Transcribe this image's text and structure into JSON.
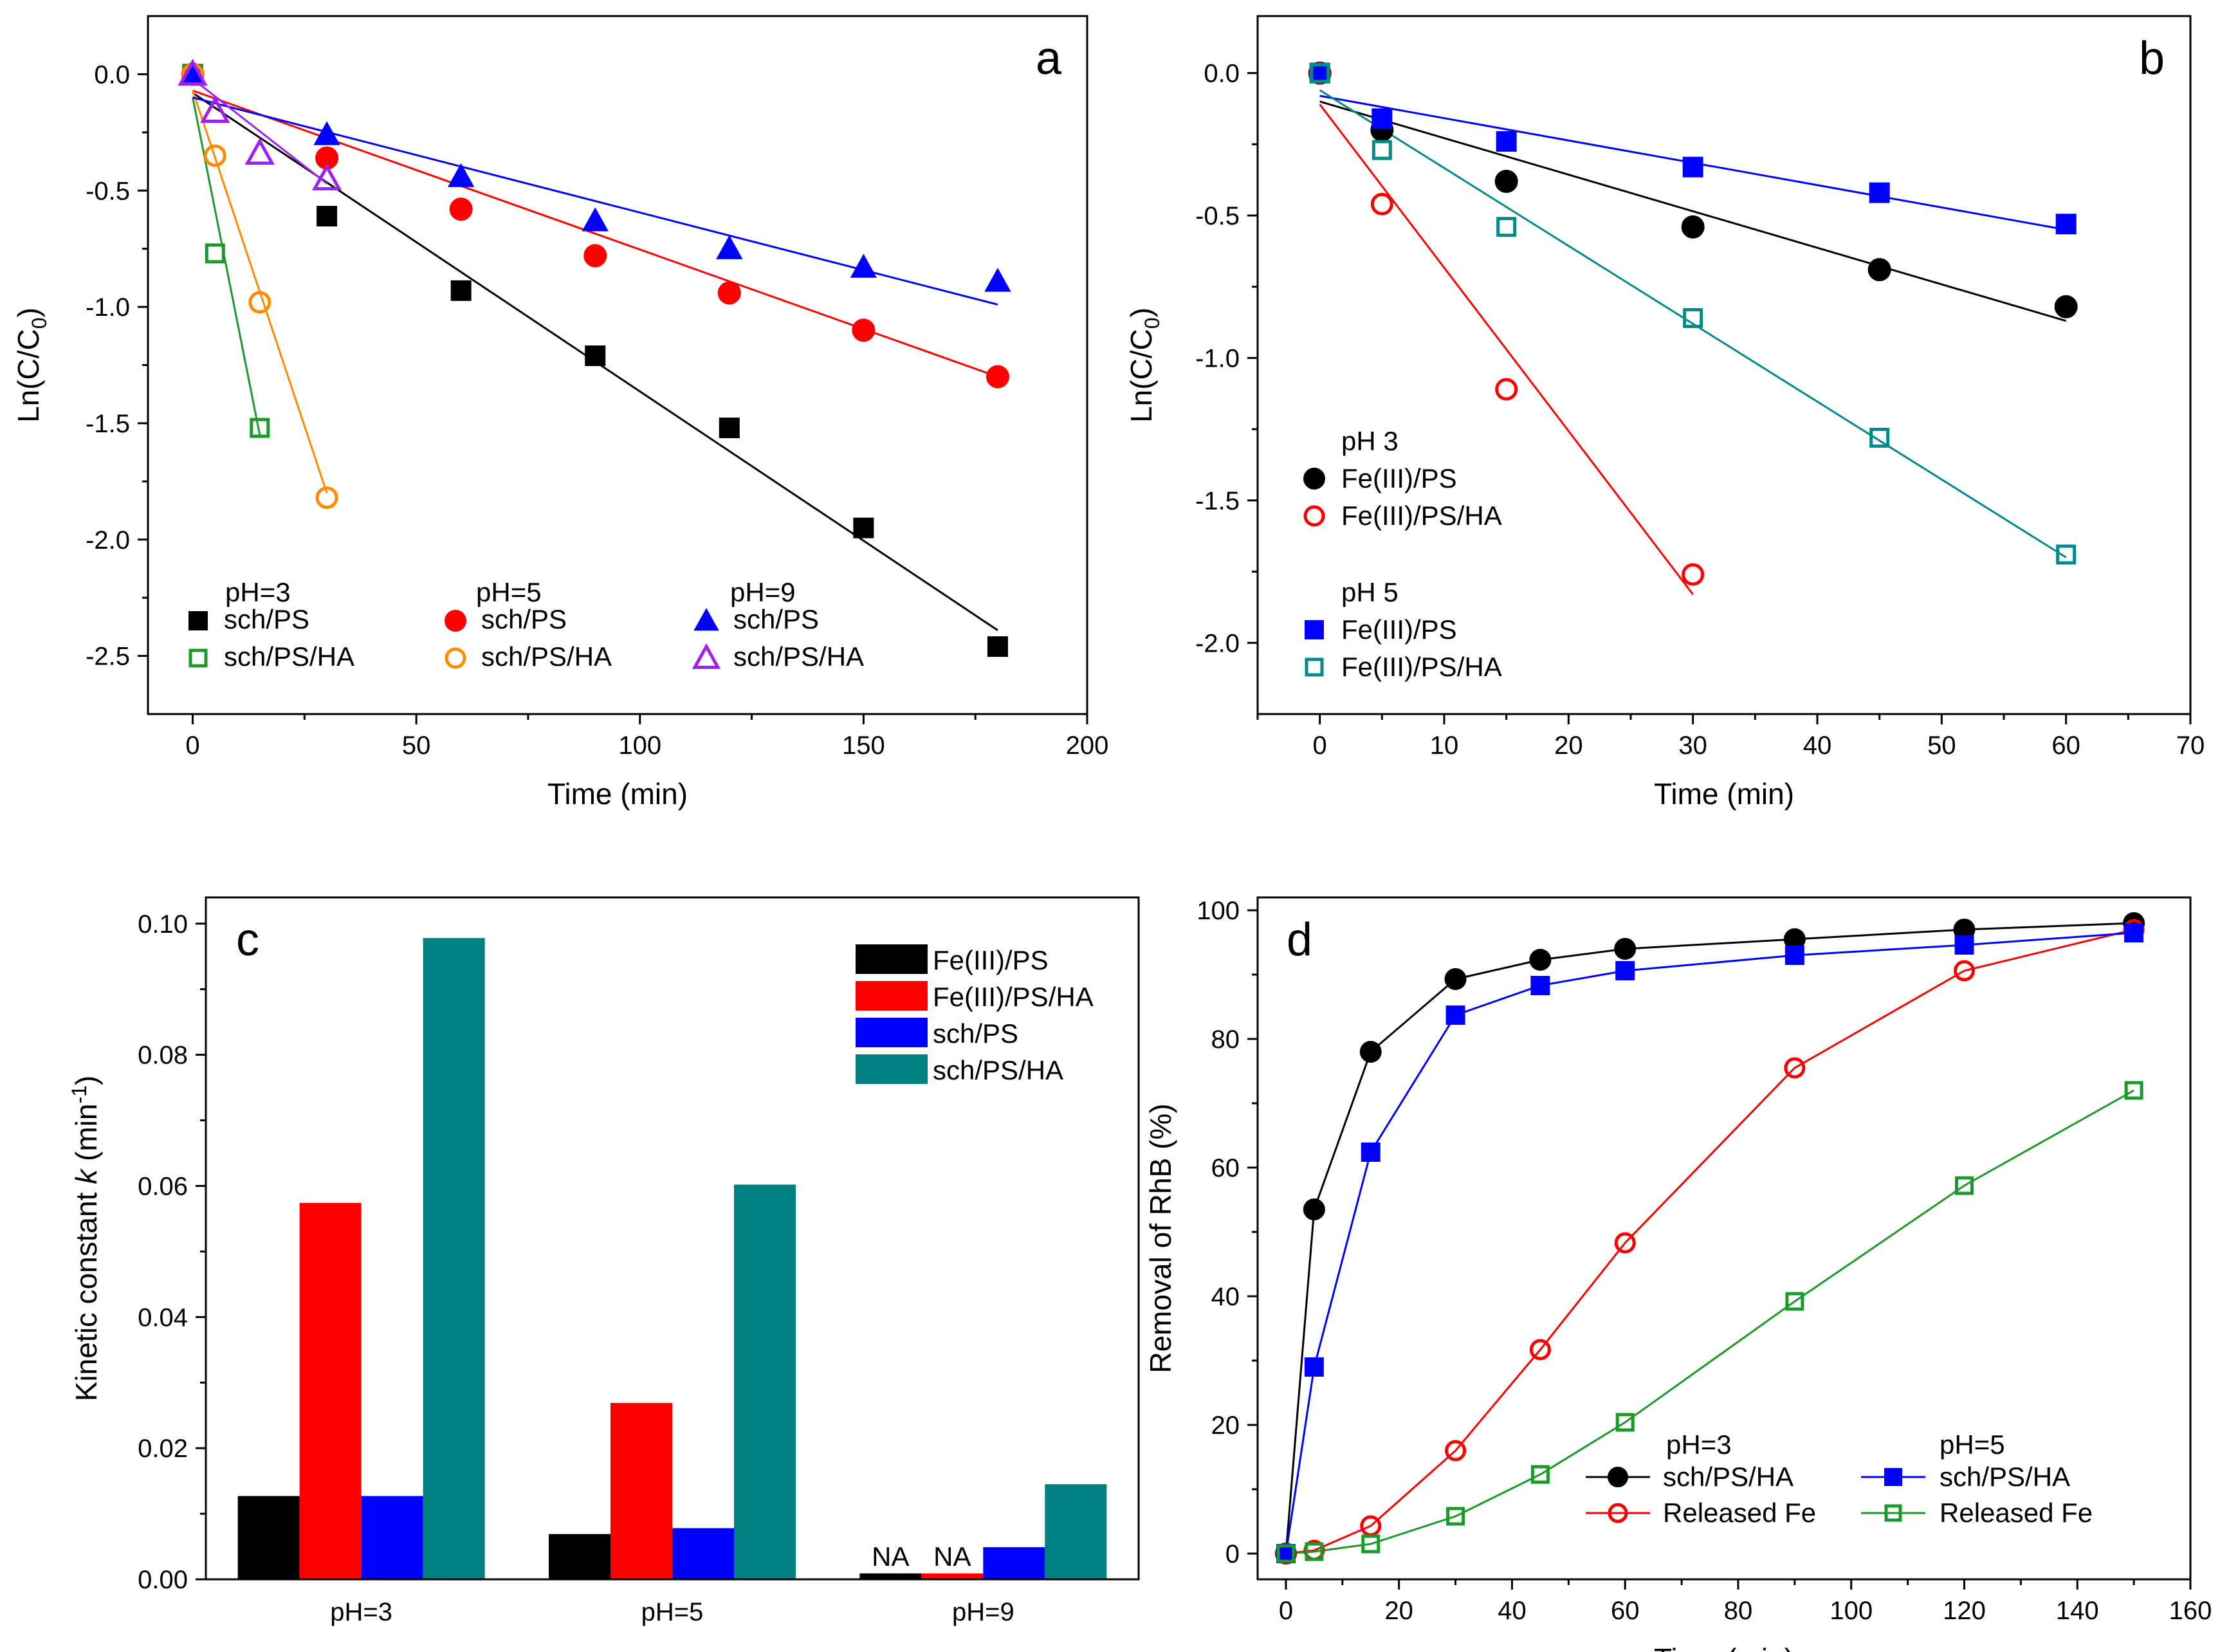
{
  "chart_data": [
    {
      "id": "a",
      "type": "scatter",
      "panel_label": "a",
      "xlabel": "Time (min)",
      "ylabel_main": "Ln(C/C",
      "ylabel_sub": "0",
      "ylabel_close": ")",
      "xlim": [
        -10,
        200
      ],
      "ylim": [
        -2.75,
        0.25
      ],
      "xticks": [
        0,
        50,
        100,
        150,
        200
      ],
      "yticks": [
        0.0,
        -0.5,
        -1.0,
        -1.5,
        -2.0,
        -2.5
      ],
      "xtick_labels": [
        "0",
        "50",
        "100",
        "150",
        "200"
      ],
      "ytick_labels": [
        "0.0",
        "-0.5",
        "-1.0",
        "-1.5",
        "-2.0",
        "-2.5"
      ],
      "legend_groups": [
        "pH=3",
        "pH=5",
        "pH=9"
      ],
      "series": [
        {
          "name": "sch/PS",
          "group": "pH=3",
          "color": "#000000",
          "marker": "square",
          "filled": true,
          "x": [
            0,
            30,
            60,
            90,
            120,
            150,
            180
          ],
          "y": [
            0.0,
            -0.61,
            -0.93,
            -1.21,
            -1.52,
            -1.95,
            -2.46
          ],
          "fit": {
            "x": [
              0,
              180
            ],
            "y": [
              -0.08,
              -2.39
            ]
          }
        },
        {
          "name": "sch/PS/HA",
          "group": "pH=3",
          "color": "#1a9a2a",
          "marker": "square",
          "filled": false,
          "x": [
            0,
            5,
            15
          ],
          "y": [
            0.0,
            -0.77,
            -1.52
          ],
          "fit": {
            "x": [
              0,
              15
            ],
            "y": [
              -0.1,
              -1.55
            ]
          }
        },
        {
          "name": "sch/PS",
          "group": "pH=5",
          "color": "#ff0000",
          "marker": "circle",
          "filled": true,
          "x": [
            0,
            30,
            60,
            90,
            120,
            150,
            180
          ],
          "y": [
            0.0,
            -0.36,
            -0.58,
            -0.78,
            -0.94,
            -1.1,
            -1.3
          ],
          "fit": {
            "x": [
              0,
              180
            ],
            "y": [
              -0.07,
              -1.3
            ]
          }
        },
        {
          "name": "sch/PS/HA",
          "group": "pH=5",
          "color": "#ff8c00",
          "marker": "circle",
          "filled": false,
          "x": [
            0,
            5,
            15,
            30
          ],
          "y": [
            0.0,
            -0.35,
            -0.98,
            -1.82
          ],
          "fit": {
            "x": [
              0,
              30
            ],
            "y": [
              -0.07,
              -1.8
            ]
          }
        },
        {
          "name": "sch/PS",
          "group": "pH=9",
          "color": "#0000ff",
          "marker": "triangle",
          "filled": true,
          "x": [
            0,
            30,
            60,
            90,
            120,
            150,
            180
          ],
          "y": [
            0.0,
            -0.26,
            -0.44,
            -0.63,
            -0.75,
            -0.83,
            -0.89
          ],
          "fit": {
            "x": [
              0,
              180
            ],
            "y": [
              -0.1,
              -0.99
            ]
          }
        },
        {
          "name": "sch/PS/HA",
          "group": "pH=9",
          "color": "#a020f0",
          "marker": "triangle",
          "filled": false,
          "x": [
            0,
            5,
            15,
            30
          ],
          "y": [
            0.0,
            -0.16,
            -0.34,
            -0.45
          ],
          "fit": {
            "x": [
              0,
              30
            ],
            "y": [
              -0.02,
              -0.47
            ]
          }
        }
      ]
    },
    {
      "id": "b",
      "type": "scatter",
      "panel_label": "b",
      "xlabel": "Time (min)",
      "ylabel_main": "Ln(C/C",
      "ylabel_sub": "0",
      "ylabel_close": ")",
      "xlim": [
        -5,
        70
      ],
      "ylim": [
        -2.25,
        0.2
      ],
      "xticks": [
        0,
        10,
        20,
        30,
        40,
        50,
        60,
        70
      ],
      "yticks": [
        0.0,
        -0.5,
        -1.0,
        -1.5,
        -2.0
      ],
      "xtick_labels": [
        "0",
        "10",
        "20",
        "30",
        "40",
        "50",
        "60",
        "70"
      ],
      "ytick_labels": [
        "0.0",
        "-0.5",
        "-1.0",
        "-1.5",
        "-2.0"
      ],
      "legend_groups": [
        "pH 3",
        "pH 5"
      ],
      "series": [
        {
          "name": "Fe(III)/PS",
          "group": "pH 3",
          "color": "#000000",
          "marker": "circle",
          "filled": true,
          "x": [
            0,
            5,
            15,
            30,
            45,
            60
          ],
          "y": [
            0.0,
            -0.2,
            -0.38,
            -0.54,
            -0.69,
            -0.82
          ],
          "fit": {
            "x": [
              0,
              60
            ],
            "y": [
              -0.1,
              -0.87
            ]
          }
        },
        {
          "name": "Fe(III)/PS/HA",
          "group": "pH 3",
          "color": "#ff0000",
          "marker": "circle",
          "filled": false,
          "x": [
            0,
            5,
            15,
            30
          ],
          "y": [
            0.0,
            -0.46,
            -1.11,
            -1.76
          ],
          "fit": {
            "x": [
              0,
              30
            ],
            "y": [
              -0.11,
              -1.83
            ]
          }
        },
        {
          "name": "Fe(III)/PS",
          "group": "pH 5",
          "color": "#0000ff",
          "marker": "square",
          "filled": true,
          "x": [
            0,
            5,
            15,
            30,
            45,
            60
          ],
          "y": [
            0.0,
            -0.16,
            -0.24,
            -0.33,
            -0.42,
            -0.53
          ],
          "fit": {
            "x": [
              0,
              60
            ],
            "y": [
              -0.08,
              -0.55
            ]
          }
        },
        {
          "name": "Fe(III)/PS/HA",
          "group": "pH 5",
          "color": "#008b8b",
          "marker": "square",
          "filled": false,
          "x": [
            0,
            5,
            15,
            30,
            45,
            60
          ],
          "y": [
            0.0,
            -0.27,
            -0.54,
            -0.86,
            -1.28,
            -1.69
          ],
          "fit": {
            "x": [
              0,
              60
            ],
            "y": [
              -0.06,
              -1.7
            ]
          }
        }
      ]
    },
    {
      "id": "c",
      "type": "bar",
      "panel_label": "c",
      "xlabel": "",
      "ylabel_main": "Kinetic constant ",
      "ylabel_italic": "k",
      "ylabel_unit": " (min",
      "ylabel_sup": "-1",
      "ylabel_close": ")",
      "categories": [
        "pH=3",
        "pH=5",
        "pH=9"
      ],
      "ylim": [
        0,
        0.104
      ],
      "yticks": [
        0.0,
        0.02,
        0.04,
        0.06,
        0.08,
        0.1
      ],
      "ytick_labels": [
        "0.00",
        "0.02",
        "0.04",
        "0.06",
        "0.08",
        "0.10"
      ],
      "na_label": "NA",
      "series": [
        {
          "name": "Fe(III)/PS",
          "color": "#000000",
          "values": [
            0.0127,
            0.0069,
            0.0009
          ],
          "na": [
            false,
            false,
            true
          ]
        },
        {
          "name": "Fe(III)/PS/HA",
          "color": "#ff0000",
          "values": [
            0.0574,
            0.0269,
            0.0009
          ],
          "na": [
            false,
            false,
            true
          ]
        },
        {
          "name": "sch/PS",
          "color": "#0000ff",
          "values": [
            0.0127,
            0.0078,
            0.0049
          ],
          "na": [
            false,
            false,
            false
          ]
        },
        {
          "name": "sch/PS/HA",
          "color": "#008080",
          "values": [
            0.0978,
            0.0602,
            0.0145
          ],
          "na": [
            false,
            false,
            false
          ]
        }
      ]
    },
    {
      "id": "d",
      "type": "line",
      "panel_label": "d",
      "xlabel": "Time (min)",
      "ylabel_main": "Removal of RhB (%)",
      "xlim": [
        -5,
        160
      ],
      "ylim": [
        -4,
        102
      ],
      "xticks": [
        0,
        20,
        40,
        60,
        80,
        100,
        120,
        140,
        160
      ],
      "yticks": [
        0,
        20,
        40,
        60,
        80,
        100
      ],
      "xtick_labels": [
        "0",
        "20",
        "40",
        "60",
        "80",
        "100",
        "120",
        "140",
        "160"
      ],
      "ytick_labels": [
        "0",
        "20",
        "40",
        "60",
        "80",
        "100"
      ],
      "legend_groups": [
        "pH=3",
        "pH=5"
      ],
      "series": [
        {
          "name": "sch/PS/HA",
          "group": "pH=3",
          "color": "#000000",
          "marker": "circle",
          "filled": true,
          "x": [
            0,
            5,
            15,
            30,
            45,
            60,
            90,
            120,
            150
          ],
          "y": [
            0,
            53.5,
            78,
            89.3,
            92.3,
            94,
            95.5,
            97,
            98
          ]
        },
        {
          "name": "Released Fe",
          "group": "pH=3",
          "color": "#ff0000",
          "marker": "circle",
          "filled": false,
          "x": [
            0,
            5,
            15,
            30,
            45,
            60,
            90,
            120,
            150
          ],
          "y": [
            0,
            0.5,
            4.3,
            16,
            31.7,
            48.3,
            75.5,
            90.6,
            97
          ]
        },
        {
          "name": "sch/PS/HA",
          "group": "pH=5",
          "color": "#0000ff",
          "marker": "square",
          "filled": true,
          "x": [
            0,
            5,
            15,
            30,
            45,
            60,
            90,
            120,
            150
          ],
          "y": [
            0,
            29,
            62.4,
            83.7,
            88.3,
            90.6,
            93,
            94.6,
            96.5
          ]
        },
        {
          "name": "Released Fe",
          "group": "pH=5",
          "color": "#1a9a2a",
          "marker": "square",
          "filled": false,
          "x": [
            0,
            5,
            15,
            30,
            45,
            60,
            90,
            120,
            150
          ],
          "y": [
            0,
            0.3,
            1.5,
            5.8,
            12.3,
            20.4,
            39.2,
            57.2,
            72
          ]
        }
      ]
    }
  ]
}
